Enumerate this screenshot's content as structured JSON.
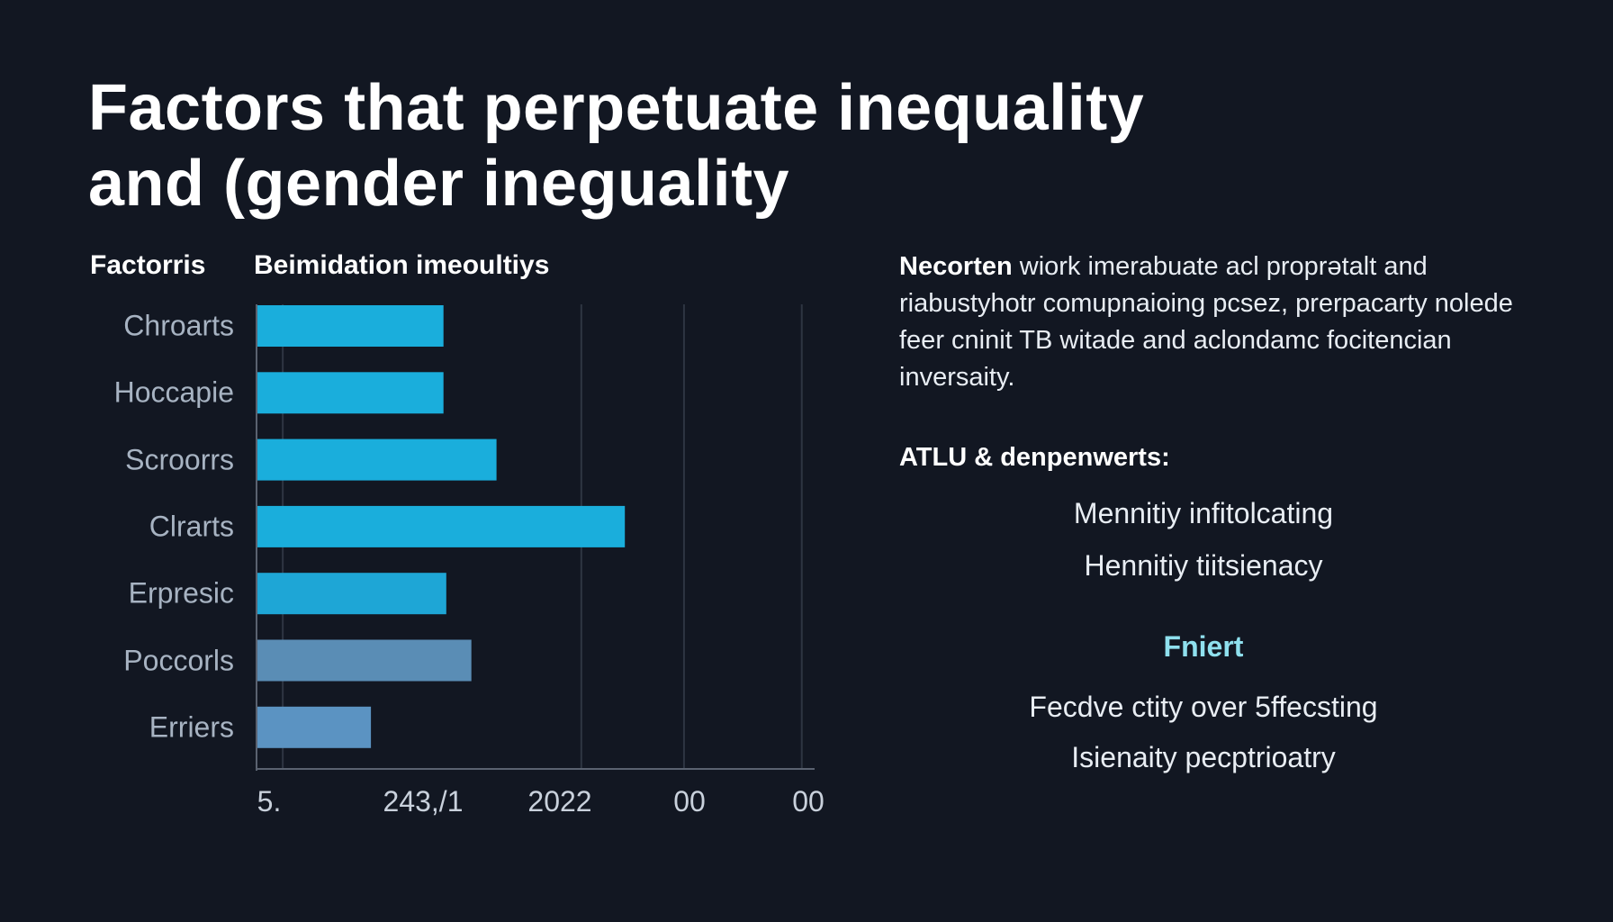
{
  "title": {
    "line1": "Factors that perpetuate inequality",
    "line2": "and (gender ineguality"
  },
  "chart_data": {
    "type": "bar",
    "orientation": "horizontal",
    "title": "Beimidation imeoultiys",
    "category_header": "Factorris",
    "categories": [
      "Chroarts",
      "Hoccapie",
      "Scroorrs",
      "Clrarts",
      "Erpresic",
      "Poccorls",
      "Erriers"
    ],
    "values": [
      33.5,
      33.5,
      43,
      66,
      34,
      38.5,
      20.5
    ],
    "bar_colors": [
      "#1aaedc",
      "#1aaedc",
      "#1aaedc",
      "#1aaedc",
      "#1ea6d6",
      "#5a8db5",
      "#5b93c2"
    ],
    "xlim": [
      0,
      100
    ],
    "x_tick_labels": [
      "5.",
      "243,/1",
      "2022",
      "00",
      "00"
    ],
    "gridlines_at": [
      4.7,
      58.2,
      76.6,
      97.7
    ],
    "grid": true,
    "xlabel": "",
    "ylabel": ""
  },
  "right_panel": {
    "para_bold": "Necorten",
    "para_rest": " wiork imerabuate acl proprətalt and riabustyhotr comupnaioing pcsez, prerpacarty nolede feer cninit TB witade and aclondamc focitencian inversaity.",
    "subheading": "ATLU & denpenwerts:",
    "list1": [
      "Mennitiy infitolcating",
      "Hennitiy tiitsienacy"
    ],
    "accent_heading": "Fniert",
    "list2": [
      "Fecdve ctity over 5ffecsting",
      "Isienaity pecptrioatry"
    ],
    "accent_color": "#8fe0ee"
  }
}
